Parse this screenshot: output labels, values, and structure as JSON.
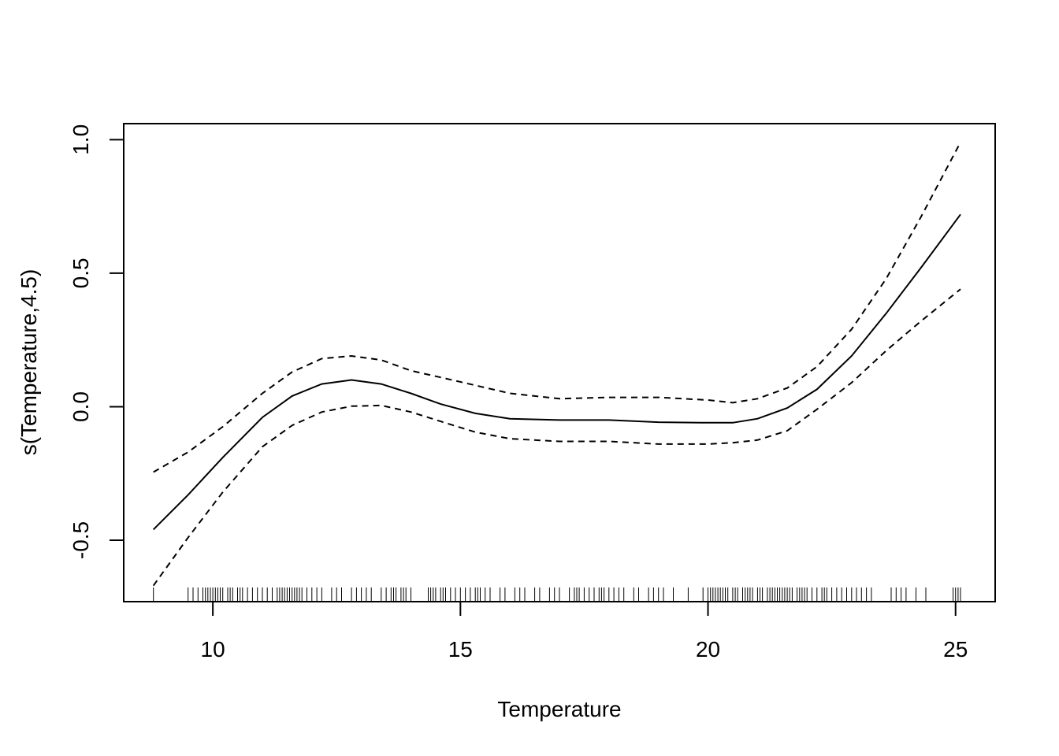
{
  "chart_data": {
    "type": "line",
    "title": "",
    "xlabel": "Temperature",
    "ylabel": "s(Temperature,4.5)",
    "xlim": [
      8.2,
      25.8
    ],
    "ylim": [
      -0.73,
      1.06
    ],
    "xticks": [
      10,
      15,
      20,
      25
    ],
    "yticks": [
      -0.5,
      0.0,
      0.5,
      1.0
    ],
    "xtick_labels": [
      "10",
      "15",
      "20",
      "25"
    ],
    "ytick_labels": [
      "-0.5",
      "0.0",
      "0.5",
      "1.0"
    ],
    "grid": false,
    "legend": "none",
    "series": [
      {
        "style": "solid",
        "x": [
          8.8,
          9.5,
          10.2,
          11.0,
          11.6,
          12.2,
          12.8,
          13.4,
          14.0,
          14.6,
          15.3,
          16.0,
          17.0,
          18.0,
          19.0,
          20.0,
          20.5,
          21.0,
          21.6,
          22.2,
          22.9,
          23.6,
          24.3,
          25.1
        ],
        "y": [
          -0.46,
          -0.33,
          -0.19,
          -0.04,
          0.04,
          0.085,
          0.1,
          0.085,
          0.05,
          0.01,
          -0.025,
          -0.045,
          -0.05,
          -0.05,
          -0.058,
          -0.06,
          -0.06,
          -0.045,
          -0.005,
          0.065,
          0.19,
          0.35,
          0.52,
          0.72
        ]
      },
      {
        "style": "dashed",
        "x": [
          8.8,
          9.5,
          10.2,
          11.0,
          11.6,
          12.2,
          12.8,
          13.4,
          14.0,
          14.6,
          15.3,
          16.0,
          17.0,
          18.0,
          19.0,
          20.0,
          20.5,
          21.0,
          21.6,
          22.2,
          22.9,
          23.6,
          24.3,
          25.1
        ],
        "y": [
          -0.245,
          -0.17,
          -0.075,
          0.05,
          0.13,
          0.18,
          0.19,
          0.175,
          0.135,
          0.11,
          0.08,
          0.05,
          0.03,
          0.035,
          0.035,
          0.025,
          0.015,
          0.03,
          0.07,
          0.15,
          0.29,
          0.48,
          0.71,
          0.99
        ]
      },
      {
        "style": "dashed",
        "x": [
          8.8,
          9.5,
          10.2,
          11.0,
          11.6,
          12.2,
          12.8,
          13.4,
          14.0,
          14.6,
          15.3,
          16.0,
          17.0,
          18.0,
          19.0,
          20.0,
          20.5,
          21.0,
          21.6,
          22.2,
          22.9,
          23.6,
          24.3,
          25.1
        ],
        "y": [
          -0.67,
          -0.49,
          -0.32,
          -0.15,
          -0.07,
          -0.02,
          0.002,
          0.005,
          -0.02,
          -0.055,
          -0.095,
          -0.12,
          -0.13,
          -0.13,
          -0.14,
          -0.14,
          -0.135,
          -0.125,
          -0.09,
          -0.01,
          0.09,
          0.21,
          0.32,
          0.44
        ]
      }
    ],
    "rug": [
      8.8,
      9.5,
      9.6,
      9.7,
      9.8,
      9.85,
      9.9,
      9.95,
      10.0,
      10.05,
      10.1,
      10.15,
      10.2,
      10.3,
      10.35,
      10.4,
      10.5,
      10.55,
      10.6,
      10.7,
      10.8,
      10.9,
      11.0,
      11.1,
      11.2,
      11.3,
      11.35,
      11.4,
      11.45,
      11.5,
      11.55,
      11.6,
      11.65,
      11.7,
      11.75,
      11.8,
      11.9,
      12.0,
      12.1,
      12.2,
      12.4,
      12.5,
      12.6,
      12.8,
      12.9,
      13.0,
      13.1,
      13.2,
      13.4,
      13.5,
      13.6,
      13.65,
      13.7,
      13.8,
      13.85,
      13.9,
      14.0,
      14.35,
      14.4,
      14.45,
      14.5,
      14.6,
      14.65,
      14.7,
      14.8,
      14.9,
      15.0,
      15.1,
      15.2,
      15.3,
      15.35,
      15.4,
      15.5,
      15.6,
      15.8,
      15.9,
      16.1,
      16.2,
      16.3,
      16.5,
      16.6,
      16.8,
      16.9,
      17.0,
      17.2,
      17.3,
      17.35,
      17.4,
      17.5,
      17.6,
      17.7,
      17.8,
      17.85,
      17.9,
      18.0,
      18.1,
      18.2,
      18.3,
      18.5,
      18.6,
      18.8,
      18.9,
      19.0,
      19.1,
      19.3,
      19.6,
      19.9,
      20.0,
      20.05,
      20.1,
      20.15,
      20.2,
      20.25,
      20.3,
      20.35,
      20.4,
      20.5,
      20.55,
      20.6,
      20.7,
      20.75,
      20.8,
      20.85,
      20.9,
      21.0,
      21.05,
      21.1,
      21.2,
      21.25,
      21.3,
      21.35,
      21.4,
      21.45,
      21.5,
      21.55,
      21.6,
      21.65,
      21.7,
      21.8,
      21.85,
      21.9,
      21.95,
      22.0,
      22.1,
      22.2,
      22.3,
      22.35,
      22.4,
      22.5,
      22.6,
      22.7,
      22.8,
      22.9,
      23.0,
      23.1,
      23.2,
      23.3,
      23.7,
      23.8,
      23.9,
      24.0,
      24.2,
      24.4,
      24.95,
      25.0,
      25.05,
      25.1
    ]
  }
}
